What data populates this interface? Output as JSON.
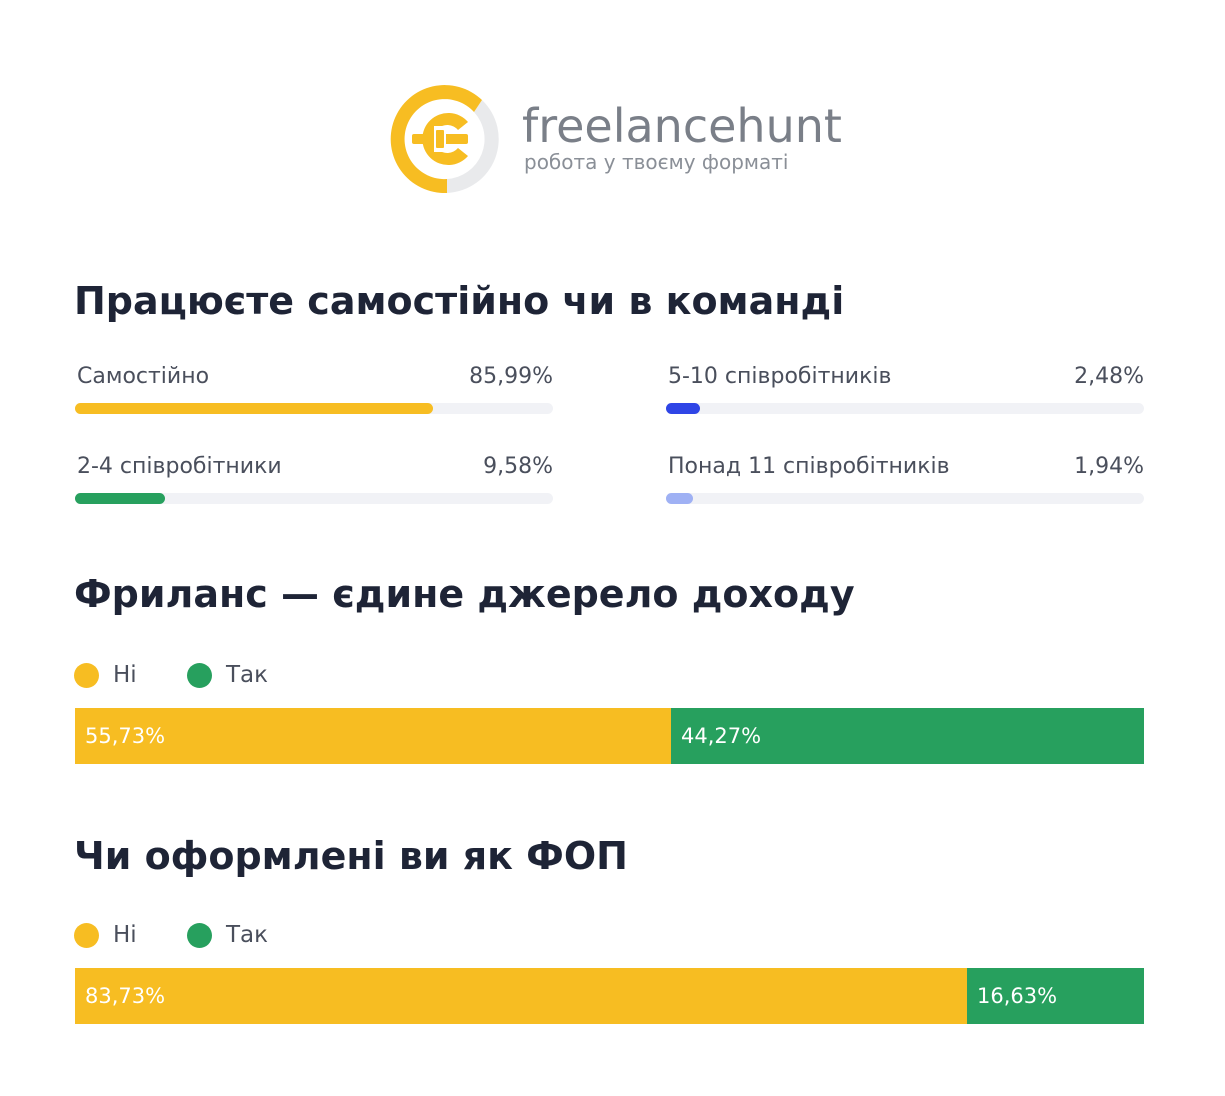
{
  "brand": {
    "name": "freelancehunt",
    "tagline": "робота у твоєму форматі",
    "colors": {
      "yellow": "#f7bd22",
      "gray": "#e9eaec"
    }
  },
  "sections": {
    "team": {
      "title": "Працюєте самостійно чи в команді"
    },
    "income": {
      "title": "Фриланс — єдине джерело доходу"
    },
    "fop": {
      "title": "Чи оформлені ви як ФОП"
    }
  },
  "chart_data": [
    {
      "type": "bar",
      "title": "Працюєте самостійно чи в команді",
      "categories": [
        "Самостійно",
        "2-4 співробітники",
        "5-10 співробітників",
        "Понад 11 співробітників"
      ],
      "values": [
        85.99,
        9.58,
        2.48,
        1.94
      ],
      "value_labels": [
        "85,99%",
        "9,58%",
        "2,48%",
        "1,94%"
      ],
      "colors": [
        "#f7bd22",
        "#27a05e",
        "#2f45e6",
        "#9fb1f4"
      ],
      "unit": "%"
    },
    {
      "type": "bar",
      "title": "Фриланс — єдине джерело доходу",
      "stacked": true,
      "legend": [
        "Ні",
        "Так"
      ],
      "legend_placement": "top-left",
      "series": [
        {
          "name": "Ні",
          "values": [
            55.73
          ],
          "label": "55,73%",
          "color": "#f7bd22"
        },
        {
          "name": "Так",
          "values": [
            44.27
          ],
          "label": "44,27%",
          "color": "#27a05e"
        }
      ],
      "unit": "%"
    },
    {
      "type": "bar",
      "title": "Чи оформлені ви як ФОП",
      "stacked": true,
      "legend": [
        "Ні",
        "Так"
      ],
      "legend_placement": "top-left",
      "series": [
        {
          "name": "Ні",
          "values": [
            83.73
          ],
          "label": "83,73%",
          "color": "#f7bd22"
        },
        {
          "name": "Так",
          "values": [
            16.63
          ],
          "label": "16,63%",
          "color": "#27a05e"
        }
      ],
      "unit": "%"
    }
  ]
}
